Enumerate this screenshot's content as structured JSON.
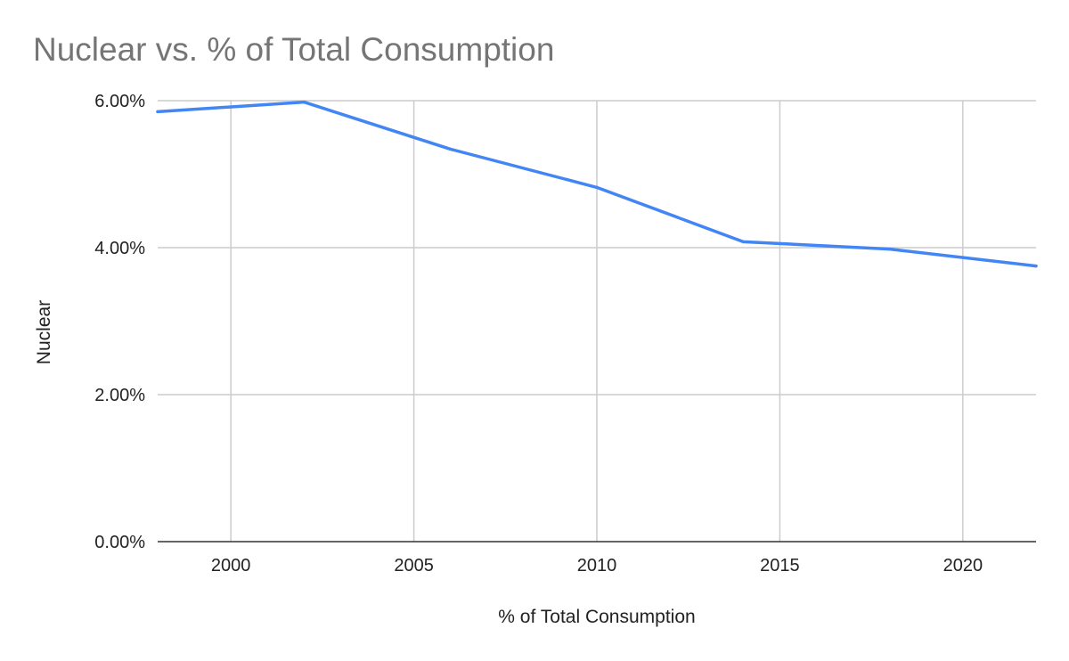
{
  "chart_data": {
    "type": "line",
    "title": "Nuclear vs. % of Total Consumption",
    "xlabel": "% of Total Consumption",
    "ylabel": "Nuclear",
    "xlim": [
      1998,
      2022
    ],
    "ylim": [
      0,
      0.06
    ],
    "x_ticks": [
      2000,
      2005,
      2010,
      2015,
      2020
    ],
    "y_ticks": [
      0,
      0.02,
      0.04,
      0.06
    ],
    "y_tick_labels": [
      "0.00%",
      "2.00%",
      "4.00%",
      "6.00%"
    ],
    "grid": true,
    "legend": "none",
    "series": [
      {
        "color": "#4285f4",
        "x": [
          1998,
          2002,
          2006,
          2010,
          2014,
          2018,
          2022
        ],
        "y": [
          0.0585,
          0.0598,
          0.0534,
          0.0482,
          0.0408,
          0.0398,
          0.0375
        ]
      }
    ]
  }
}
